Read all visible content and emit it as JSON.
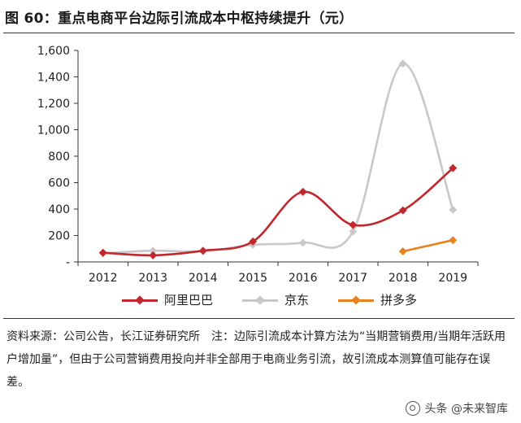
{
  "title": "图 60：重点电商平台边际引流成本中枢持续提升（元）",
  "chart_data": {
    "type": "line",
    "categories": [
      "2012",
      "2013",
      "2014",
      "2015",
      "2016",
      "2017",
      "2018",
      "2019"
    ],
    "ylim": [
      0,
      1600
    ],
    "y_ticks": [
      {
        "value": 0,
        "label": "-"
      },
      {
        "value": 200,
        "label": "200"
      },
      {
        "value": 400,
        "label": "400"
      },
      {
        "value": 600,
        "label": "600"
      },
      {
        "value": 800,
        "label": "800"
      },
      {
        "value": 1000,
        "label": "1,000"
      },
      {
        "value": 1200,
        "label": "1,200"
      },
      {
        "value": 1400,
        "label": "1,400"
      },
      {
        "value": 1600,
        "label": "1,600"
      }
    ],
    "smooth": true,
    "grid": false,
    "legend_position": "bottom",
    "series": [
      {
        "name": "阿里巴巴",
        "color": "#c0282d",
        "values": [
          70,
          50,
          85,
          155,
          530,
          280,
          390,
          710
        ]
      },
      {
        "name": "京东",
        "color": "#c8c8c8",
        "values": [
          65,
          85,
          80,
          130,
          145,
          230,
          1500,
          395
        ]
      },
      {
        "name": "拼多多",
        "color": "#e8821e",
        "values": [
          null,
          null,
          null,
          null,
          null,
          null,
          80,
          165
        ]
      }
    ]
  },
  "note": "资料来源：公司公告，长江证券研究所　注：边际引流成本计算方法为“当期营销费用/当期年活跃用户增加量”，但由于公司营销费用投向并非全部用于电商业务引流，故引流成本测算值可能存在误差。",
  "watermark": "头条 @未来智库"
}
